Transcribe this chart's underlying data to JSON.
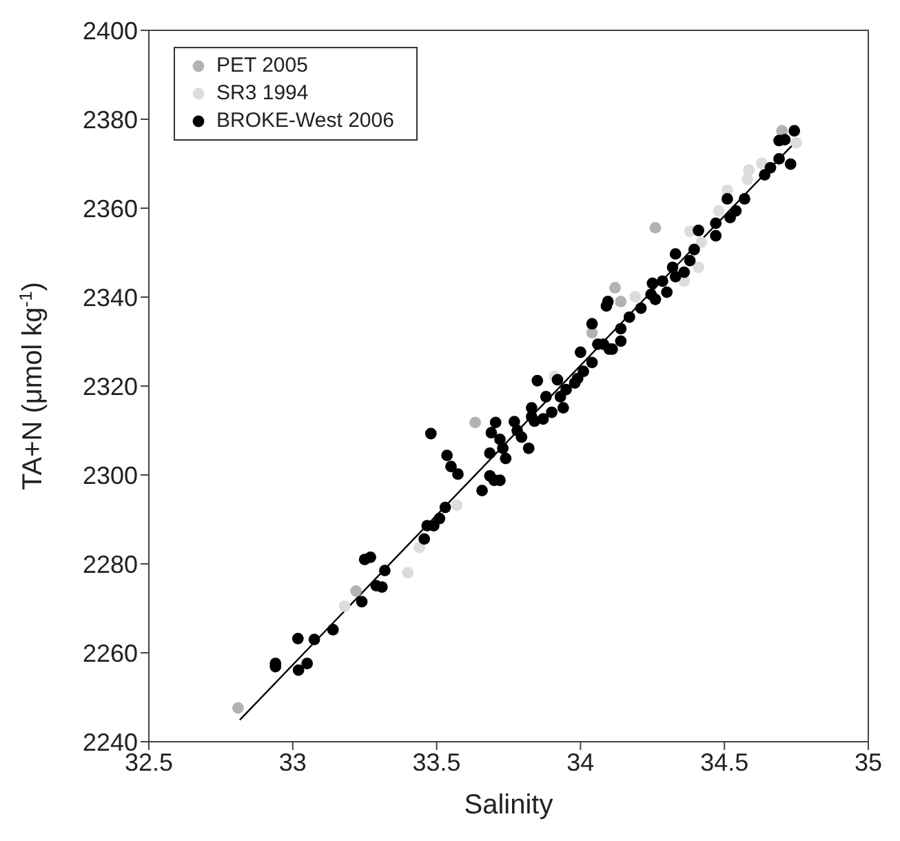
{
  "chart_data": {
    "type": "scatter",
    "xlabel": "Salinity",
    "ylabel": "TA+N (μmol kg$^{-1}$)",
    "xlim": [
      32.5,
      35
    ],
    "xticks": [
      32.5,
      33,
      33.5,
      34,
      34.5,
      35
    ],
    "ylim": [
      2240,
      2400
    ],
    "yticks": [
      2240,
      2260,
      2280,
      2300,
      2320,
      2340,
      2360,
      2380,
      2400
    ],
    "legend": "top left",
    "marker": "circle",
    "series": [
      {
        "name": "PET 2005",
        "color": "#b3b3b3",
        "x": [
          32.81,
          33.22,
          33.634,
          34.26,
          34.12,
          34.14,
          34.04,
          34.7
        ],
        "values": [
          2247.6,
          2273.9,
          2311.8,
          2355.6,
          2342.1,
          2339,
          2332,
          2377.4
        ]
      },
      {
        "name": "SR3 1994",
        "color": "#dcdcdc",
        "x": [
          33.18,
          33.4,
          33.44,
          33.57,
          33.91,
          34.75,
          34.585,
          34.63,
          34.58,
          34.51,
          34.48,
          34.38,
          34.42,
          34.41,
          34.36,
          34.19
        ],
        "values": [
          2270.5,
          2278,
          2283.7,
          2293.2,
          2322.2,
          2374.7,
          2368.6,
          2370.1,
          2366.5,
          2364,
          2359.4,
          2354.8,
          2352.3,
          2346.7,
          2343.6,
          2340.1
        ]
      },
      {
        "name": "BROKE-West 2006",
        "color": "#000000",
        "x": [
          32.94,
          32.94,
          33.018,
          33.02,
          33.05,
          33.075,
          33.14,
          33.24,
          33.25,
          33.27,
          33.29,
          33.31,
          33.32,
          33.457,
          33.467,
          33.49,
          33.51,
          33.53,
          33.48,
          33.536,
          33.55,
          33.574,
          33.658,
          33.685,
          33.7,
          33.72,
          33.685,
          33.74,
          33.69,
          33.705,
          33.72,
          33.73,
          33.77,
          33.78,
          33.795,
          33.82,
          33.83,
          33.84,
          33.87,
          33.9,
          33.83,
          33.88,
          33.93,
          33.94,
          33.85,
          33.92,
          33.95,
          33.98,
          33.99,
          34.01,
          34.04,
          34.0,
          34.08,
          34.11,
          34.14,
          34.743,
          34.69,
          34.71,
          34.69,
          34.73,
          34.64,
          34.66,
          34.51,
          34.54,
          34.52,
          34.57,
          34.47,
          34.47,
          34.41,
          34.33,
          34.32,
          34.36,
          34.395,
          34.38,
          34.33,
          34.25,
          34.245,
          34.285,
          34.3,
          34.26,
          34.095,
          34.09,
          34.21,
          34.17,
          34.14,
          34.04,
          34.06,
          34.1
        ],
        "values": [
          2257.6,
          2256.9,
          2263.2,
          2256.1,
          2257.6,
          2263,
          2265.2,
          2271.5,
          2281,
          2281.5,
          2275.1,
          2274.8,
          2278.5,
          2285.6,
          2288.6,
          2288.6,
          2290.2,
          2292.7,
          2309.3,
          2304.4,
          2301.9,
          2300.2,
          2296.5,
          2299.8,
          2298.8,
          2298.8,
          2304.9,
          2303.7,
          2309.5,
          2311.8,
          2308,
          2306,
          2312,
          2310,
          2308.5,
          2306,
          2313.1,
          2312.1,
          2312.6,
          2314.1,
          2315.1,
          2317.6,
          2317.6,
          2315.1,
          2321.2,
          2321.4,
          2319.2,
          2320.7,
          2321.7,
          2323.3,
          2325.3,
          2327.6,
          2329.4,
          2328.3,
          2330.1,
          2377.4,
          2375.2,
          2375.4,
          2371.1,
          2369.9,
          2367.5,
          2369.1,
          2362.1,
          2359.4,
          2357.9,
          2362.1,
          2356.6,
          2353.8,
          2355,
          2349.7,
          2346.7,
          2345.6,
          2350.7,
          2348.2,
          2344.6,
          2343.1,
          2340.6,
          2343.6,
          2341.1,
          2339.5,
          2339,
          2338,
          2337.5,
          2335.5,
          2332.9,
          2334,
          2329.4,
          2328.3
        ]
      },
      {
        "type": "line",
        "marker": "none",
        "color": "#000000",
        "x": [
          32.816,
          34.735
        ],
        "values": [
          2244.9,
          2374.1
        ]
      }
    ]
  }
}
